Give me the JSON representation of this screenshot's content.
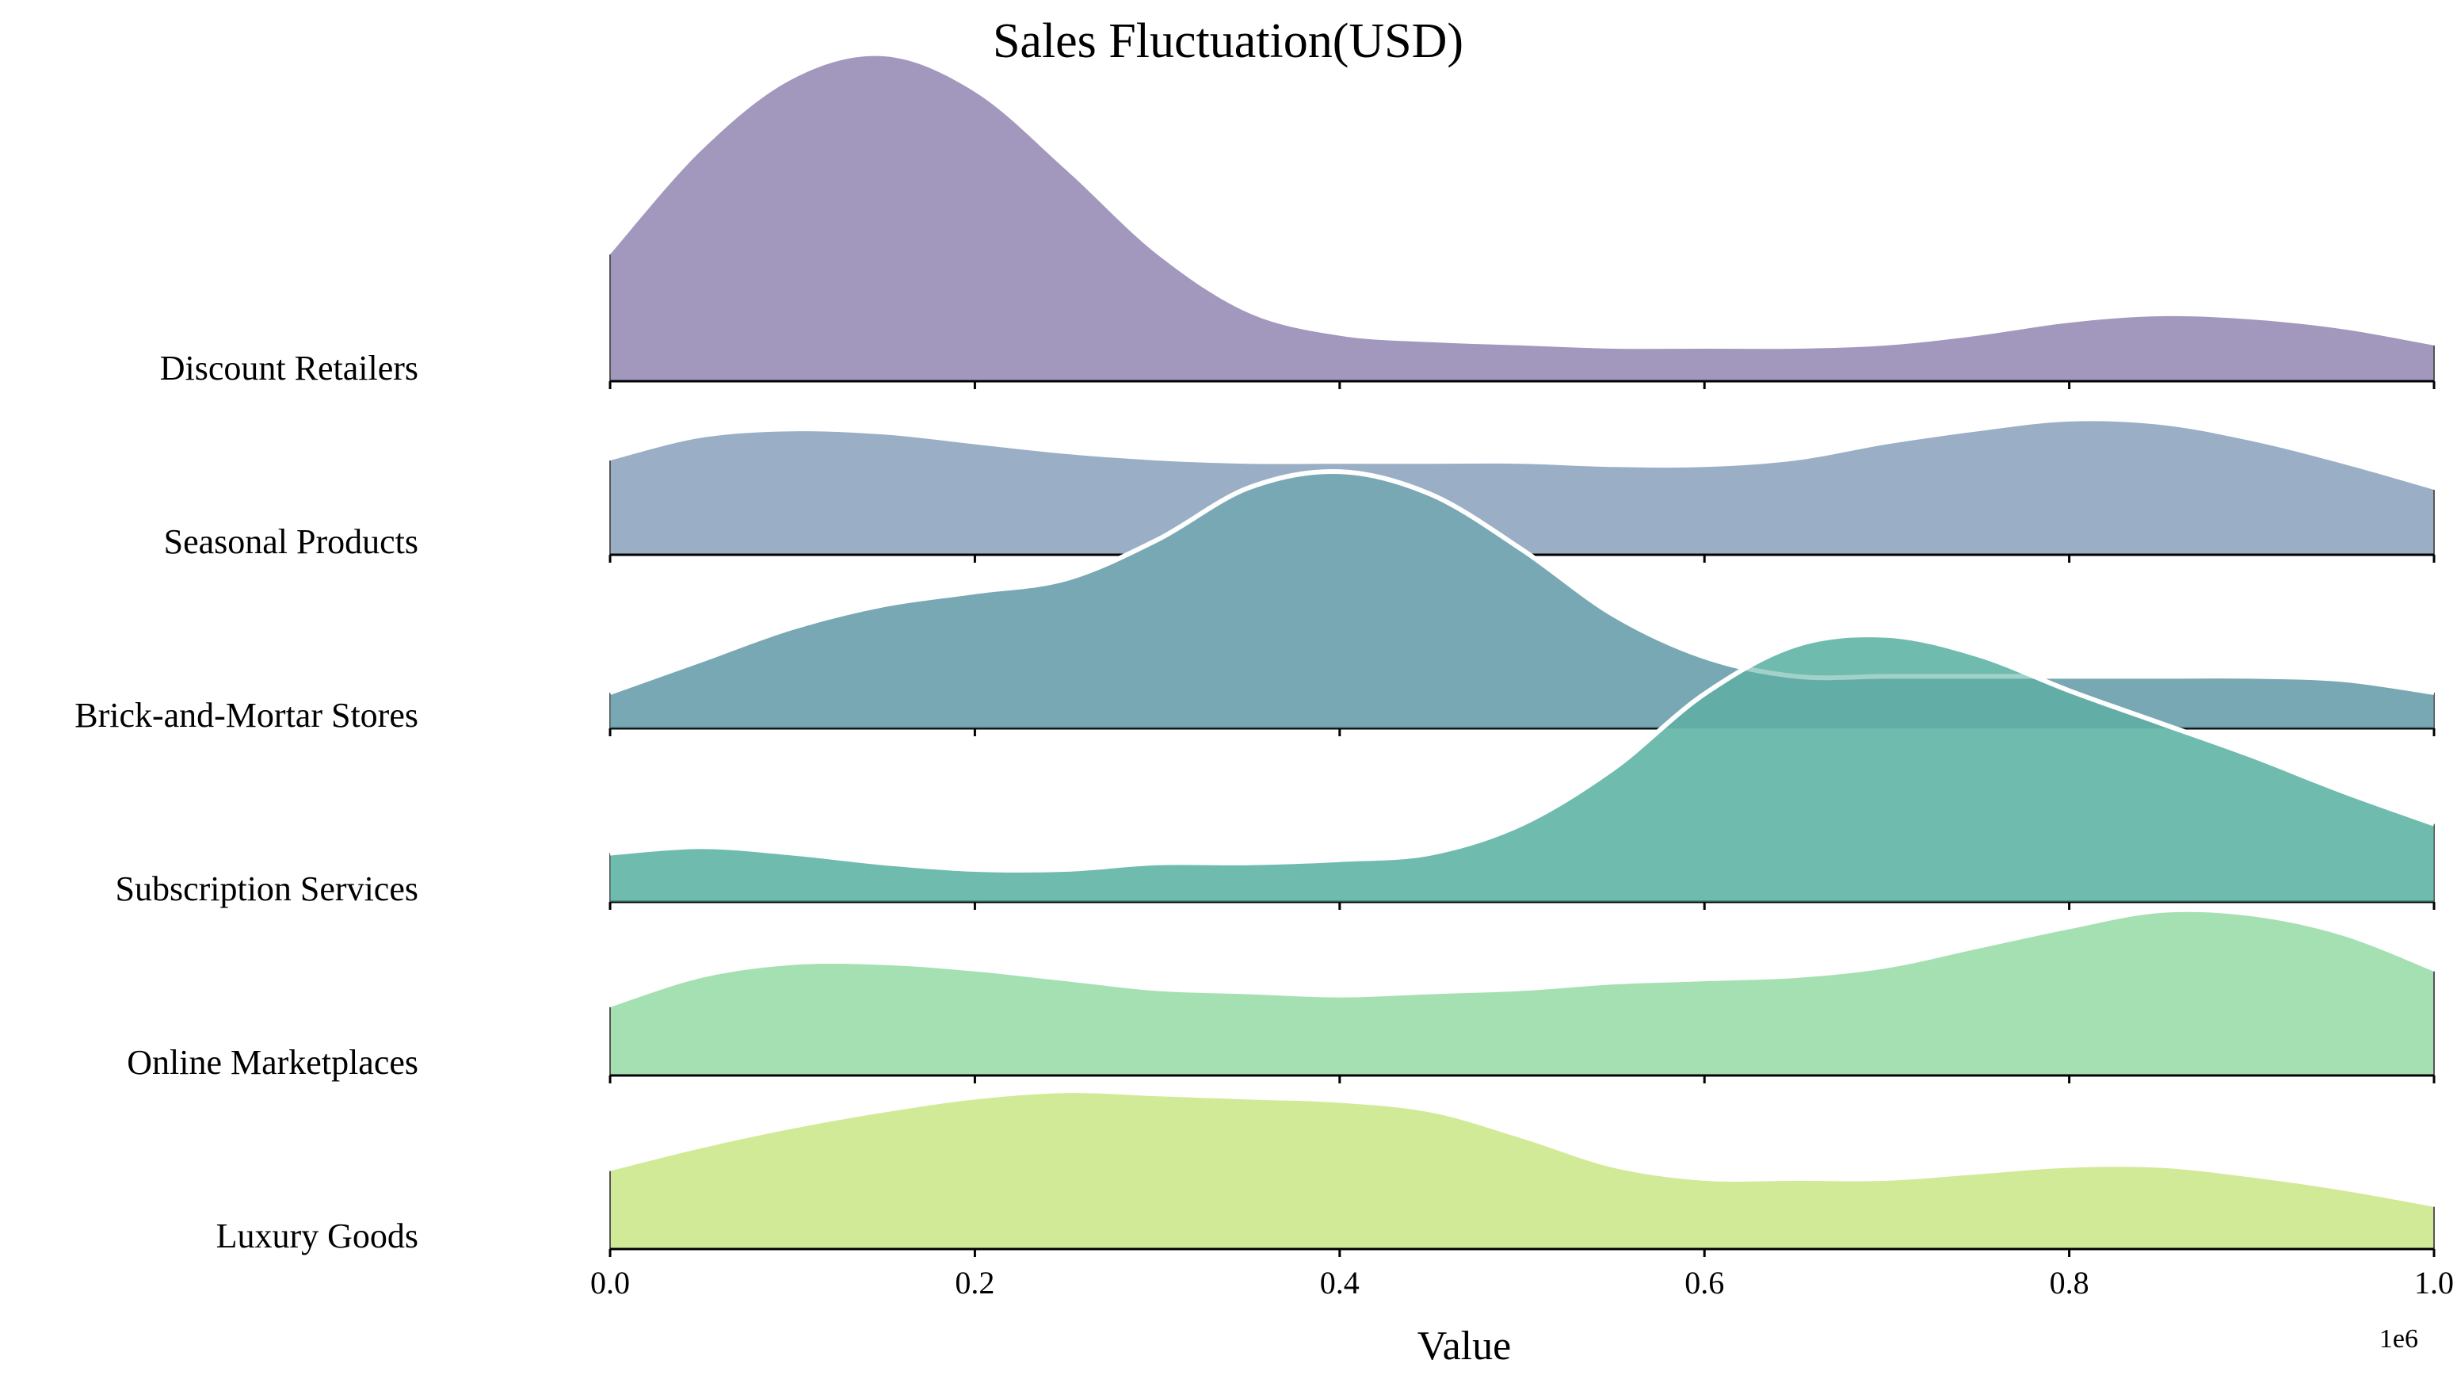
{
  "chart_data": {
    "type": "ridgeline",
    "title": "Sales Fluctuation(USD)",
    "xlabel": "Value",
    "x_offset_text": "1e6",
    "xlim": [
      0,
      1000000
    ],
    "x_ticks": [
      0,
      200000,
      400000,
      600000,
      800000,
      1000000
    ],
    "x_tick_labels": [
      "0.0",
      "0.2",
      "0.4",
      "0.6",
      "0.8",
      "1.0"
    ],
    "grid": false,
    "x_sample_points": [
      0,
      50000,
      100000,
      150000,
      200000,
      250000,
      300000,
      350000,
      400000,
      450000,
      500000,
      550000,
      600000,
      650000,
      700000,
      750000,
      800000,
      850000,
      900000,
      950000,
      1000000
    ],
    "density_unit": "relative height (1.0 = tallest ridge peak)",
    "series": [
      {
        "name": "Discount Retailers",
        "color": "#a298bd",
        "density": [
          0.39,
          0.71,
          0.93,
          1.0,
          0.89,
          0.65,
          0.39,
          0.21,
          0.14,
          0.12,
          0.11,
          0.1,
          0.1,
          0.1,
          0.11,
          0.14,
          0.18,
          0.2,
          0.19,
          0.16,
          0.11
        ]
      },
      {
        "name": "Seasonal Products",
        "color": "#9aaec6",
        "density": [
          0.29,
          0.36,
          0.38,
          0.37,
          0.34,
          0.31,
          0.29,
          0.28,
          0.28,
          0.28,
          0.28,
          0.27,
          0.27,
          0.29,
          0.34,
          0.38,
          0.41,
          0.4,
          0.35,
          0.28,
          0.2
        ]
      },
      {
        "name": "Brick-and-Mortar Stores",
        "color": "#95bdc3",
        "highlight_color": "#5f97a6",
        "density": [
          0.11,
          0.21,
          0.31,
          0.38,
          0.42,
          0.46,
          0.58,
          0.74,
          0.79,
          0.72,
          0.55,
          0.35,
          0.22,
          0.16,
          0.16,
          0.16,
          0.16,
          0.16,
          0.16,
          0.15,
          0.11
        ]
      },
      {
        "name": "Subscription Services",
        "color": "#8fcfc0",
        "highlight_color": "#55ab9f",
        "density": [
          0.15,
          0.17,
          0.15,
          0.12,
          0.1,
          0.1,
          0.12,
          0.12,
          0.13,
          0.15,
          0.24,
          0.41,
          0.64,
          0.79,
          0.82,
          0.76,
          0.65,
          0.55,
          0.45,
          0.34,
          0.24
        ]
      },
      {
        "name": "Online Marketplaces",
        "color": "#a5e0b3",
        "density": [
          0.21,
          0.3,
          0.34,
          0.34,
          0.32,
          0.29,
          0.26,
          0.25,
          0.24,
          0.25,
          0.26,
          0.28,
          0.29,
          0.3,
          0.33,
          0.39,
          0.45,
          0.5,
          0.49,
          0.43,
          0.32
        ]
      },
      {
        "name": "Luxury Goods",
        "color": "#d1ea97",
        "density": [
          0.24,
          0.31,
          0.37,
          0.42,
          0.46,
          0.48,
          0.47,
          0.46,
          0.45,
          0.42,
          0.34,
          0.25,
          0.21,
          0.21,
          0.21,
          0.23,
          0.25,
          0.25,
          0.22,
          0.18,
          0.13
        ]
      }
    ],
    "highlighted_series": [
      "Brick-and-Mortar Stores",
      "Subscription Services"
    ],
    "highlight_outline_color": "#ffffff"
  }
}
